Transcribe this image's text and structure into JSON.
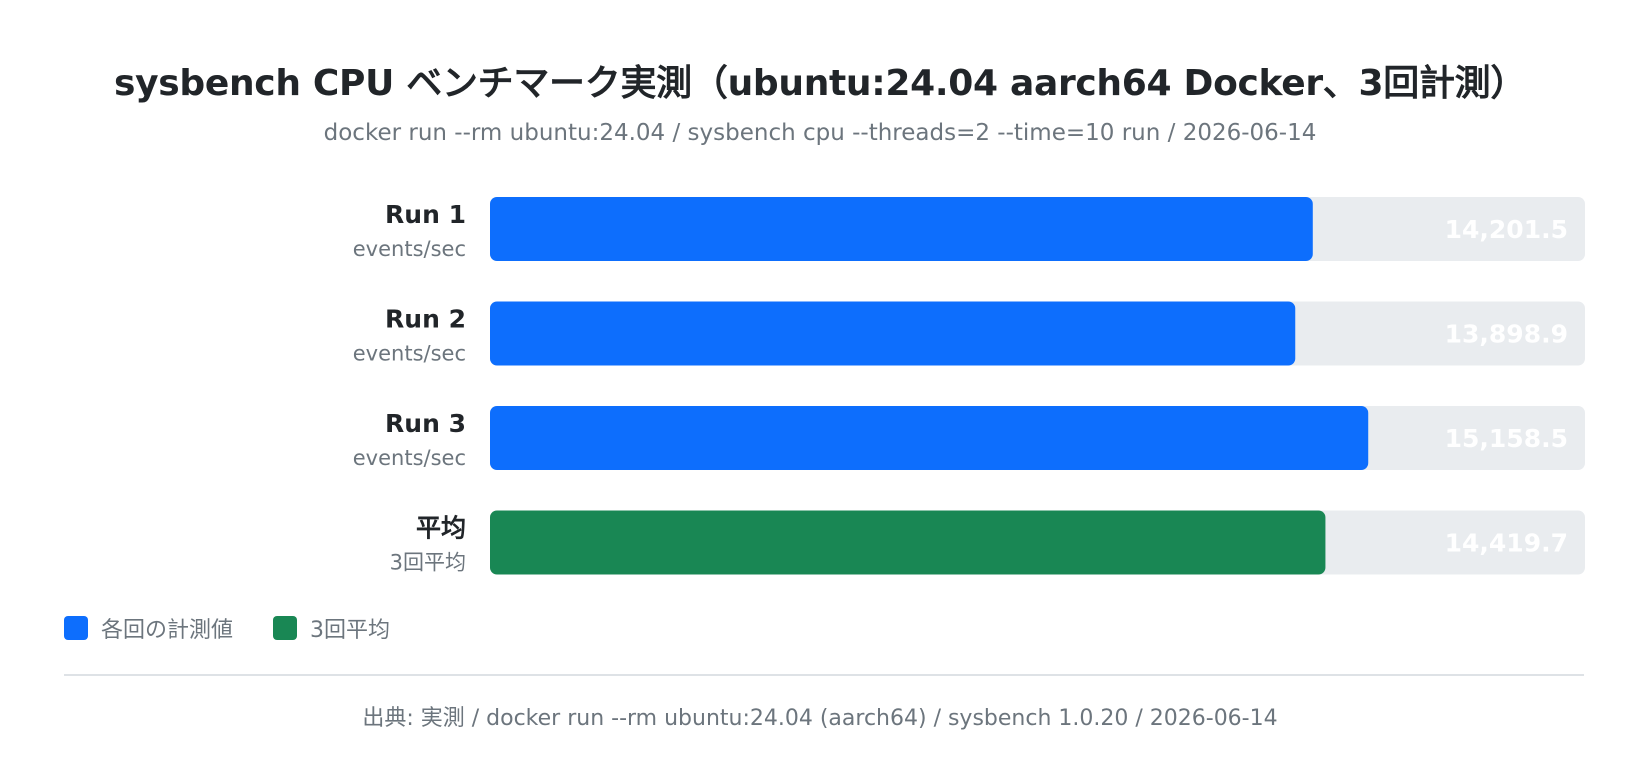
{
  "header": {
    "title": "sysbench CPU ベンチマーク実測（ubuntu:24.04 aarch64 Docker、3回計測）",
    "subtitle": "docker run --rm ubuntu:24.04 / sysbench cpu --threads=2 --time=10 run / 2026-06-14"
  },
  "chart_data": {
    "type": "bar",
    "orientation": "horizontal",
    "xlim": [
      0,
      18900
    ],
    "grid": false,
    "legend_position": "bottom-left",
    "bars": [
      {
        "label": "Run 1",
        "sublabel": "events/sec",
        "value": 14201.5,
        "value_label": "14,201.5",
        "series": "各回の計測値"
      },
      {
        "label": "Run 2",
        "sublabel": "events/sec",
        "value": 13898.9,
        "value_label": "13,898.9",
        "series": "各回の計測値"
      },
      {
        "label": "Run 3",
        "sublabel": "events/sec",
        "value": 15158.5,
        "value_label": "15,158.5",
        "series": "各回の計測値"
      },
      {
        "label": "平均",
        "sublabel": "3回平均",
        "value": 14419.7,
        "value_label": "14,419.7",
        "series": "3回平均"
      }
    ],
    "series": [
      {
        "name": "各回の計測値",
        "color": "#0d6efd"
      },
      {
        "name": "3回平均",
        "color": "#198754"
      }
    ],
    "track_color": "#e9ecef"
  },
  "legend": {
    "items": [
      {
        "label": "各回の計測値",
        "color": "#0d6efd"
      },
      {
        "label": "3回平均",
        "color": "#198754"
      }
    ]
  },
  "footer": {
    "source": "出典: 実測 / docker run --rm ubuntu:24.04 (aarch64) / sysbench 1.0.20 / 2026-06-14"
  }
}
